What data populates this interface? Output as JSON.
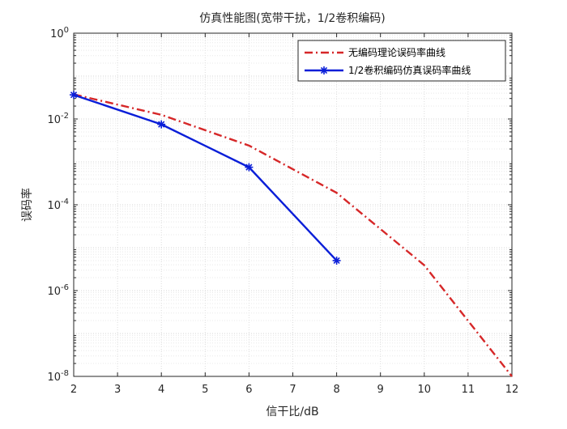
{
  "chart_data": {
    "type": "line",
    "title": "仿真性能图(宽带干扰，1/2卷积编码)",
    "xlabel": "信干比/dB",
    "ylabel": "误码率",
    "xlim": [
      2,
      12
    ],
    "ylim": [
      1e-08,
      1
    ],
    "yscale": "log",
    "grid": true,
    "minor_grid": true,
    "legend_position": "top-right",
    "x_ticks": [
      "2",
      "3",
      "4",
      "5",
      "6",
      "7",
      "8",
      "9",
      "10",
      "11",
      "12"
    ],
    "y_tick_exponents": [
      "-8",
      "-6",
      "-4",
      "-2",
      "0"
    ],
    "y_tick_base": "10",
    "series": [
      {
        "name": "无编码理论误码率曲线",
        "color": "#d62728",
        "style": "dash-dot",
        "marker": "none",
        "x": [
          2,
          4,
          6,
          8,
          10,
          12
        ],
        "y": [
          0.0375,
          0.0125,
          0.0024,
          0.00019,
          3.9e-06,
          1e-08
        ]
      },
      {
        "name": "1/2卷积编码仿真误码率曲线",
        "color": "#0a1ed8",
        "style": "solid",
        "marker": "asterisk",
        "x": [
          2,
          4,
          6,
          8
        ],
        "y": [
          0.0365,
          0.0075,
          0.00075,
          5e-06
        ]
      }
    ]
  }
}
